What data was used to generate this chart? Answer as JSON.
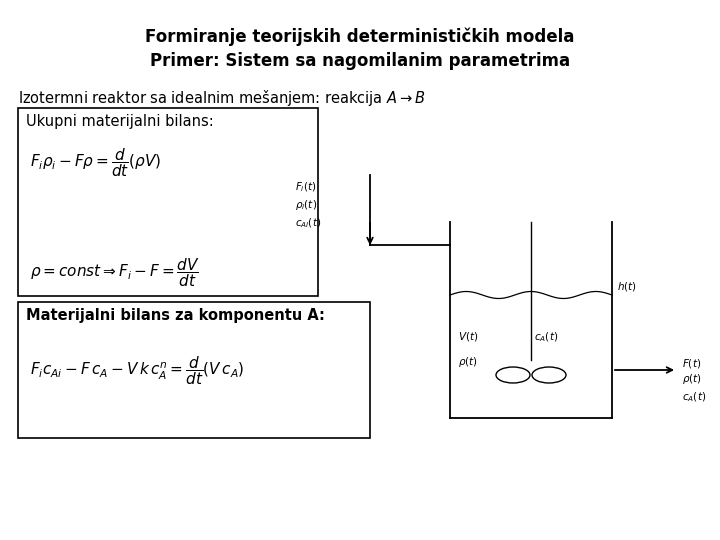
{
  "title_line1": "Formiranje teorijskih determinističkih modela",
  "title_line2": "Primer: Sistem sa nagomilanim parametrima",
  "subtitle_plain": "Izotermni reaktor sa idealnim mešanjem: reakcija ",
  "subtitle_arrow": "$A\\rightarrow B$",
  "box1_label": "Ukupni materijalni bilans:",
  "box1_eq1": "$F_i\\rho_i - F\\rho = \\dfrac{d}{dt}(\\rho V)$",
  "box1_eq2": "$\\rho = const \\Rightarrow F_i - F = \\dfrac{dV}{dt}$",
  "box2_label": "Materijalni bilans za komponentu A:",
  "box2_eq1": "$F_i c_{Ai} - F\\, c_A - V\\, k\\, c_A^n = \\dfrac{d}{dt}(V\\, c_A)$",
  "bg_color": "#ffffff",
  "title_fontsize": 12,
  "text_fontsize": 10.5,
  "eq_fontsize": 11,
  "label_fontsize": 7.5
}
